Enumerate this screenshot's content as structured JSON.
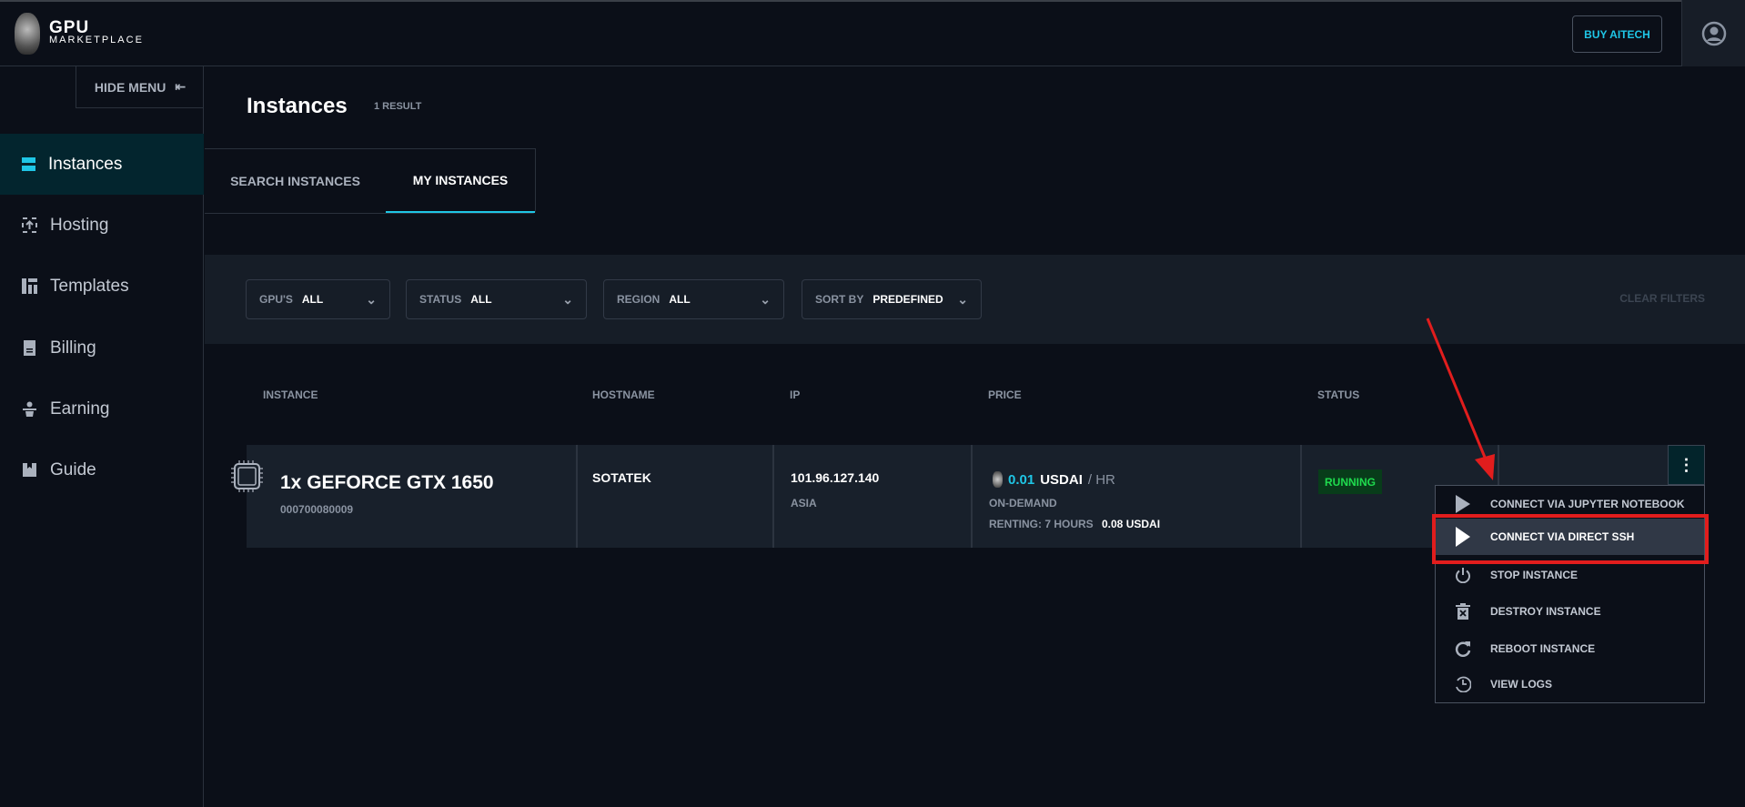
{
  "header": {
    "logo_line1": "GPU",
    "logo_line2": "MARKETPLACE",
    "buy_button": "BUY AITECH"
  },
  "sidebar": {
    "hide_menu": "HIDE MENU",
    "items": [
      {
        "label": "Instances",
        "icon": "server-icon",
        "active": true
      },
      {
        "label": "Hosting",
        "icon": "upload-icon"
      },
      {
        "label": "Templates",
        "icon": "layout-icon"
      },
      {
        "label": "Billing",
        "icon": "receipt-icon"
      },
      {
        "label": "Earning",
        "icon": "plant-icon"
      },
      {
        "label": "Guide",
        "icon": "book-icon"
      }
    ]
  },
  "page": {
    "title": "Instances",
    "result_count": "1 RESULT",
    "tabs": [
      {
        "label": "SEARCH INSTANCES"
      },
      {
        "label": "MY INSTANCES",
        "active": true
      }
    ]
  },
  "filters": {
    "gpus": {
      "label": "GPU'S",
      "value": "ALL"
    },
    "status": {
      "label": "STATUS",
      "value": "ALL"
    },
    "region": {
      "label": "REGION",
      "value": "ALL"
    },
    "sort": {
      "label": "SORT BY",
      "value": "PREDEFINED"
    },
    "clear": "CLEAR FILTERS"
  },
  "table": {
    "headers": [
      "INSTANCE",
      "HOSTNAME",
      "IP",
      "PRICE",
      "STATUS"
    ],
    "rows": [
      {
        "name": "1x GEFORCE GTX 1650",
        "id": "000700080009",
        "hostname": "SOTATEK",
        "ip": "101.96.127.140",
        "region": "ASIA",
        "price": "0.01",
        "currency": "USDAI",
        "per": "/ HR",
        "type": "ON-DEMAND",
        "renting": "RENTING: 7 HOURS",
        "total": "0.08 USDAI",
        "status": "RUNNING"
      }
    ]
  },
  "menu": {
    "items": [
      "CONNECT VIA JUPYTER NOTEBOOK",
      "CONNECT VIA DIRECT SSH",
      "STOP INSTANCE",
      "DESTROY INSTANCE",
      "REBOOT INSTANCE",
      "VIEW LOGS"
    ]
  },
  "colors": {
    "accent": "#1fc6e6",
    "running": "#1fdc4e",
    "annotation": "#e11d1d"
  }
}
